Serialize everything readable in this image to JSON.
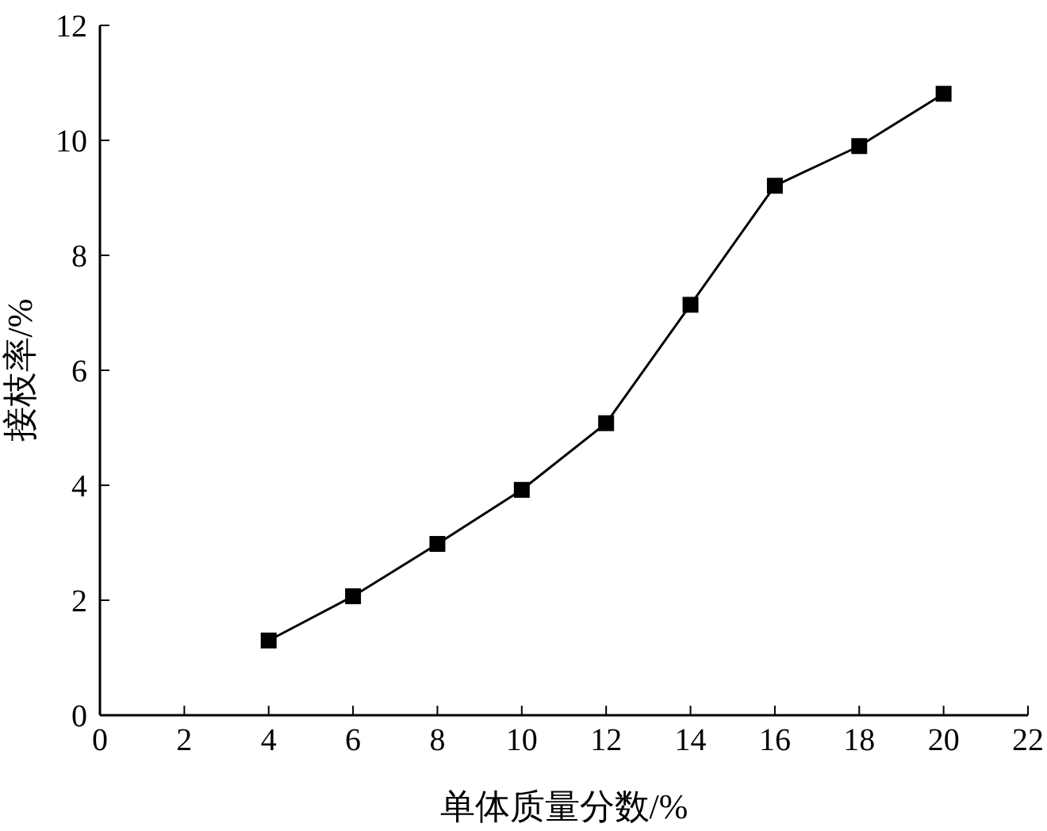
{
  "chart_data": {
    "type": "line",
    "xlabel": "单体质量分数/%",
    "ylabel": "接枝率/%",
    "x": [
      4,
      6,
      8,
      10,
      12,
      14,
      16,
      18,
      20
    ],
    "series": [
      {
        "color": "#000000",
        "values": [
          1.3,
          2.07,
          2.98,
          3.92,
          5.08,
          7.14,
          9.21,
          9.9,
          10.81
        ]
      }
    ],
    "xlim": [
      0,
      22
    ],
    "xticks": [
      0,
      2,
      4,
      6,
      8,
      10,
      12,
      14,
      16,
      18,
      20,
      22
    ],
    "ylim": [
      0,
      12
    ],
    "yticks": [
      0,
      2,
      4,
      6,
      8,
      10,
      12
    ],
    "grid": false,
    "legend": false,
    "marker": "square",
    "line_style": "solid"
  }
}
